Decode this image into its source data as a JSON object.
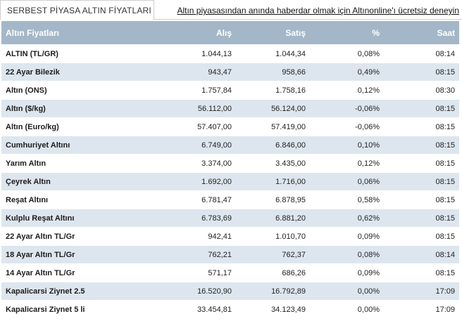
{
  "header": {
    "section_title": "SERBEST PİYASA ALTIN FİYATLARI",
    "promo_link": "Altın piyasasından anında haberdar olmak için Altınonline'ı ücretsiz deneyin"
  },
  "table": {
    "columns": [
      "Altın Fiyatları",
      "Alış",
      "Satış",
      "%",
      "Saat"
    ],
    "rows": [
      {
        "name": "ALTIN (TL/GR)",
        "buy": "1.044,13",
        "sell": "1.044,34",
        "change": "0,08%",
        "time": "08:14"
      },
      {
        "name": "22 Ayar Bilezik",
        "buy": "943,47",
        "sell": "958,66",
        "change": "0,49%",
        "time": "08:15"
      },
      {
        "name": "Altın (ONS)",
        "buy": "1.757,84",
        "sell": "1.758,16",
        "change": "0,12%",
        "time": "08:30"
      },
      {
        "name": "Altın ($/kg)",
        "buy": "56.112,00",
        "sell": "56.124,00",
        "change": "-0,06%",
        "time": "08:15"
      },
      {
        "name": "Altın (Euro/kg)",
        "buy": "57.407,00",
        "sell": "57.419,00",
        "change": "-0,06%",
        "time": "08:15"
      },
      {
        "name": "Cumhuriyet Altını",
        "buy": "6.749,00",
        "sell": "6.846,00",
        "change": "0,10%",
        "time": "08:15"
      },
      {
        "name": "Yarım Altın",
        "buy": "3.374,00",
        "sell": "3.435,00",
        "change": "0,12%",
        "time": "08:15"
      },
      {
        "name": "Çeyrek Altın",
        "buy": "1.692,00",
        "sell": "1.716,00",
        "change": "0,06%",
        "time": "08:15"
      },
      {
        "name": "Reşat Altını",
        "buy": "6.781,47",
        "sell": "6.878,95",
        "change": "0,58%",
        "time": "08:15"
      },
      {
        "name": "Kulplu Reşat Altını",
        "buy": "6.783,69",
        "sell": "6.881,20",
        "change": "0,62%",
        "time": "08:15"
      },
      {
        "name": "22 Ayar Altın TL/Gr",
        "buy": "942,41",
        "sell": "1.010,70",
        "change": "0,09%",
        "time": "08:15"
      },
      {
        "name": "18 Ayar Altın TL/Gr",
        "buy": "762,21",
        "sell": "762,37",
        "change": "0,08%",
        "time": "08:14"
      },
      {
        "name": "14 Ayar Altın TL/Gr",
        "buy": "571,17",
        "sell": "686,26",
        "change": "0,09%",
        "time": "08:15"
      },
      {
        "name": "Kapalicarsi Ziynet 2.5",
        "buy": "16.520,90",
        "sell": "16.792,89",
        "change": "0,00%",
        "time": "17:09"
      },
      {
        "name": "Kapalicarsi Ziynet 5 li",
        "buy": "33.454,81",
        "sell": "34.123,49",
        "change": "0,00%",
        "time": "17:09"
      }
    ]
  }
}
